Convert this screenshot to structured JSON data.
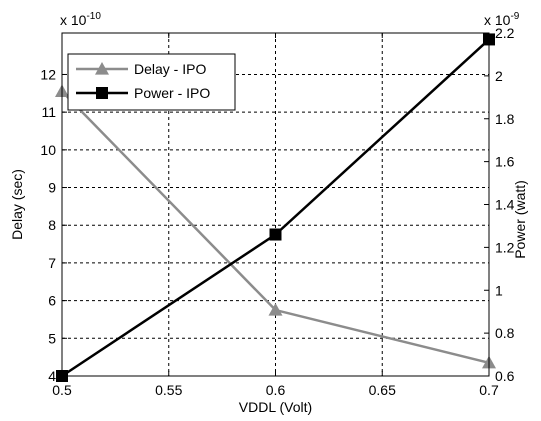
{
  "chart_data": {
    "type": "line",
    "x": [
      0.5,
      0.6,
      0.7
    ],
    "xlabel": "VDDL (Volt)",
    "xlim": [
      0.5,
      0.7
    ],
    "x_ticks": [
      "0.5",
      "0.55",
      "0.6",
      "0.65",
      "0.7"
    ],
    "x_tick_values": [
      0.5,
      0.55,
      0.6,
      0.65,
      0.7
    ],
    "grid": true,
    "legend_position": "top-left",
    "left_axis": {
      "label": "Delay (sec)",
      "multiplier": "x 10",
      "exponent": "-10",
      "ylim": [
        4,
        13.1
      ],
      "ticks": [
        "4",
        "5",
        "6",
        "7",
        "8",
        "9",
        "10",
        "11",
        "12"
      ],
      "tick_values": [
        4,
        5,
        6,
        7,
        8,
        9,
        10,
        11,
        12
      ]
    },
    "right_axis": {
      "label": "Power (watt)",
      "multiplier": "x 10",
      "exponent": "-9",
      "ylim": [
        0.6,
        2.2
      ],
      "ticks": [
        "0.6",
        "0.8",
        "1",
        "1.2",
        "1.4",
        "1.6",
        "1.8",
        "2",
        "2.2"
      ],
      "tick_values": [
        0.6,
        0.8,
        1.0,
        1.2,
        1.4,
        1.6,
        1.8,
        2.0,
        2.2
      ]
    },
    "series": [
      {
        "name": "Delay - IPO",
        "axis": "left",
        "values": [
          11.55,
          5.75,
          4.35
        ],
        "color": "#8c8c8c",
        "marker": "triangle"
      },
      {
        "name": "Power - IPO",
        "axis": "right",
        "values": [
          0.6,
          1.26,
          2.17
        ],
        "color": "#000000",
        "marker": "square"
      }
    ]
  }
}
